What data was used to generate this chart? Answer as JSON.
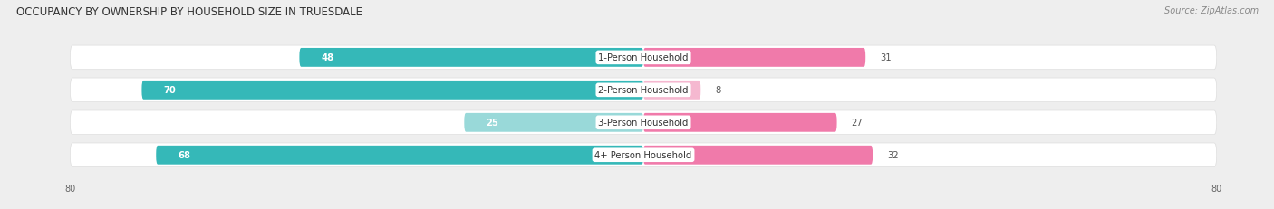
{
  "title": "OCCUPANCY BY OWNERSHIP BY HOUSEHOLD SIZE IN TRUESDALE",
  "source": "Source: ZipAtlas.com",
  "categories": [
    "1-Person Household",
    "2-Person Household",
    "3-Person Household",
    "4+ Person Household"
  ],
  "owner_values": [
    48,
    70,
    25,
    68
  ],
  "renter_values": [
    31,
    8,
    27,
    32
  ],
  "axis_max": 80,
  "owner_colors": [
    "#35b8b8",
    "#35b8b8",
    "#99d9d9",
    "#35b8b8"
  ],
  "renter_colors": [
    "#f07aaa",
    "#f5b8d0",
    "#f07aaa",
    "#f07aaa"
  ],
  "bg_color": "#eeeeee",
  "row_bg_color": "#f7f7f7",
  "title_fontsize": 8.5,
  "label_fontsize": 7.2,
  "value_fontsize": 7.2,
  "tick_fontsize": 7,
  "legend_fontsize": 7.5,
  "source_fontsize": 7
}
